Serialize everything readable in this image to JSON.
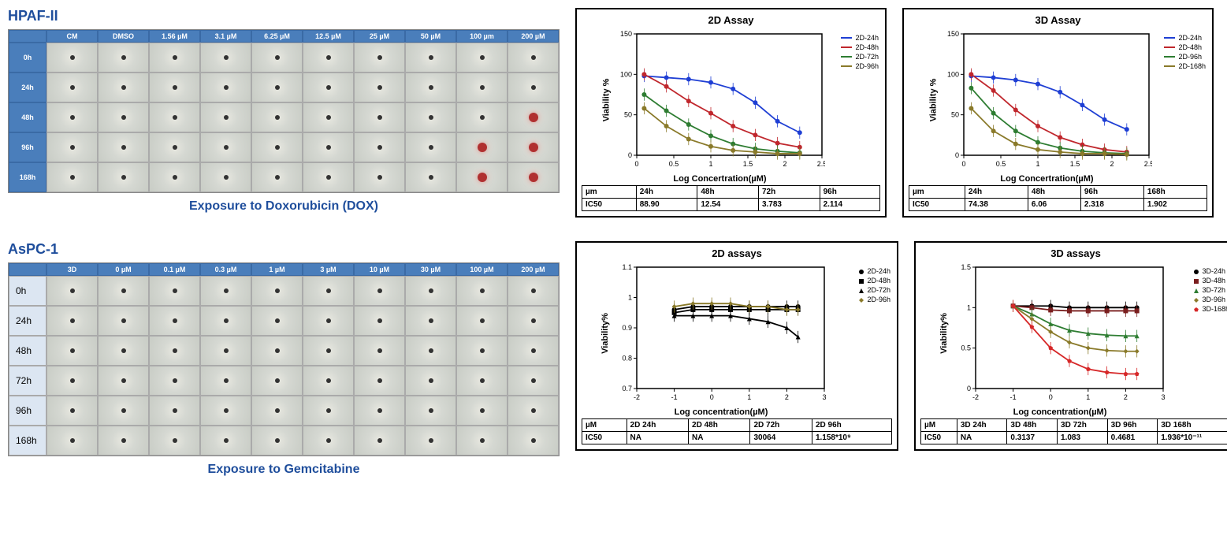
{
  "top": {
    "cell_line": "HPAF-II",
    "caption": "Exposure to Doxorubicin (DOX)",
    "label_color": "#1f4e9c",
    "grid": {
      "col_headers": [
        "CM",
        "DMSO",
        "1.56 µM",
        "3.1 µM",
        "6.25 µM",
        "12.5 µM",
        "25 µM",
        "50 µM",
        "100 µm",
        "200 µM"
      ],
      "row_headers": [
        "0h",
        "24h",
        "48h",
        "96h",
        "168h"
      ],
      "header_bg": "#4a7ebb",
      "red_cells": [
        [
          2,
          9
        ],
        [
          3,
          8
        ],
        [
          3,
          9
        ],
        [
          4,
          8
        ],
        [
          4,
          9
        ]
      ]
    },
    "chart2d": {
      "title": "2D Assay",
      "ylabel": "Viability %",
      "xlabel": "Log Concertration(µM)",
      "xlim": [
        0.0,
        2.5
      ],
      "xticks": [
        0.0,
        0.5,
        1.0,
        1.5,
        2.0,
        2.5
      ],
      "ylim": [
        0,
        150
      ],
      "yticks": [
        0,
        50,
        100,
        150
      ],
      "series": [
        {
          "name": "2D-24h",
          "color": "#1f3fd4",
          "data": [
            [
              0.1,
              98
            ],
            [
              0.4,
              96
            ],
            [
              0.7,
              94
            ],
            [
              1.0,
              90
            ],
            [
              1.3,
              82
            ],
            [
              1.6,
              65
            ],
            [
              1.9,
              42
            ],
            [
              2.2,
              28
            ]
          ]
        },
        {
          "name": "2D-48h",
          "color": "#c0272d",
          "data": [
            [
              0.1,
              100
            ],
            [
              0.4,
              85
            ],
            [
              0.7,
              67
            ],
            [
              1.0,
              52
            ],
            [
              1.3,
              36
            ],
            [
              1.6,
              25
            ],
            [
              1.9,
              15
            ],
            [
              2.2,
              10
            ]
          ]
        },
        {
          "name": "2D-72h",
          "color": "#2e7d32",
          "data": [
            [
              0.1,
              75
            ],
            [
              0.4,
              55
            ],
            [
              0.7,
              38
            ],
            [
              1.0,
              24
            ],
            [
              1.3,
              14
            ],
            [
              1.6,
              8
            ],
            [
              1.9,
              5
            ],
            [
              2.2,
              3
            ]
          ]
        },
        {
          "name": "2D-96h",
          "color": "#8a7a2a",
          "data": [
            [
              0.1,
              58
            ],
            [
              0.4,
              36
            ],
            [
              0.7,
              20
            ],
            [
              1.0,
              11
            ],
            [
              1.3,
              6
            ],
            [
              1.6,
              4
            ],
            [
              1.9,
              2
            ],
            [
              2.2,
              2
            ]
          ]
        }
      ],
      "ic50_headers": [
        "µm",
        "24h",
        "48h",
        "72h",
        "96h"
      ],
      "ic50_values": [
        "IC50",
        "88.90",
        "12.54",
        "3.783",
        "2.114"
      ]
    },
    "chart3d": {
      "title": "3D Assay",
      "ylabel": "Viability %",
      "xlabel": "Log Concertration(µM)",
      "xlim": [
        0.0,
        2.5
      ],
      "xticks": [
        0.0,
        0.5,
        1.0,
        1.5,
        2.0,
        2.5
      ],
      "ylim": [
        0,
        150
      ],
      "yticks": [
        0,
        50,
        100,
        150
      ],
      "series": [
        {
          "name": "2D-24h",
          "color": "#1f3fd4",
          "data": [
            [
              0.1,
              98
            ],
            [
              0.4,
              96
            ],
            [
              0.7,
              93
            ],
            [
              1.0,
              88
            ],
            [
              1.3,
              78
            ],
            [
              1.6,
              62
            ],
            [
              1.9,
              44
            ],
            [
              2.2,
              32
            ]
          ]
        },
        {
          "name": "2D-48h",
          "color": "#c0272d",
          "data": [
            [
              0.1,
              100
            ],
            [
              0.4,
              80
            ],
            [
              0.7,
              56
            ],
            [
              1.0,
              36
            ],
            [
              1.3,
              22
            ],
            [
              1.6,
              13
            ],
            [
              1.9,
              7
            ],
            [
              2.2,
              4
            ]
          ]
        },
        {
          "name": "2D-96h",
          "color": "#2e7d32",
          "data": [
            [
              0.1,
              83
            ],
            [
              0.4,
              52
            ],
            [
              0.7,
              30
            ],
            [
              1.0,
              16
            ],
            [
              1.3,
              9
            ],
            [
              1.6,
              5
            ],
            [
              1.9,
              3
            ],
            [
              2.2,
              2
            ]
          ]
        },
        {
          "name": "2D-168h",
          "color": "#8a7a2a",
          "data": [
            [
              0.1,
              58
            ],
            [
              0.4,
              30
            ],
            [
              0.7,
              14
            ],
            [
              1.0,
              7
            ],
            [
              1.3,
              4
            ],
            [
              1.6,
              2
            ],
            [
              1.9,
              2
            ],
            [
              2.2,
              1
            ]
          ]
        }
      ],
      "ic50_headers": [
        "µm",
        "24h",
        "48h",
        "96h",
        "168h"
      ],
      "ic50_values": [
        "IC50",
        "74.38",
        "6.06",
        "2.318",
        "1.902"
      ]
    }
  },
  "bottom": {
    "cell_line": "AsPC-1",
    "caption": "Exposure to Gemcitabine",
    "grid": {
      "col_headers": [
        "3D",
        "0 µM",
        "0.1 µM",
        "0.3 µM",
        "1 µM",
        "3 µM",
        "10 µM",
        "30 µM",
        "100 µM",
        "200 µM"
      ],
      "row_headers": [
        "0h",
        "24h",
        "48h",
        "72h",
        "96h",
        "168h"
      ],
      "light_row_labels": true,
      "header_bg": "#4a7ebb"
    },
    "chart2d": {
      "title": "2D assays",
      "ylabel": "Viability%",
      "xlabel": "Log concentration(µM)",
      "xlim": [
        -2,
        3
      ],
      "xticks": [
        -2,
        -1,
        0,
        1,
        2,
        3
      ],
      "ylim": [
        0.7,
        1.1
      ],
      "yticks": [
        0.7,
        0.8,
        0.9,
        1.0,
        1.1
      ],
      "markers": true,
      "series": [
        {
          "name": "2D-24h",
          "color": "#000000",
          "marker": "circle",
          "data": [
            [
              -1,
              0.96
            ],
            [
              -0.5,
              0.97
            ],
            [
              0,
              0.97
            ],
            [
              0.5,
              0.97
            ],
            [
              1,
              0.97
            ],
            [
              1.5,
              0.97
            ],
            [
              2,
              0.97
            ],
            [
              2.3,
              0.97
            ]
          ]
        },
        {
          "name": "2D-48h",
          "color": "#000000",
          "marker": "square",
          "data": [
            [
              -1,
              0.95
            ],
            [
              -0.5,
              0.96
            ],
            [
              0,
              0.96
            ],
            [
              0.5,
              0.96
            ],
            [
              1,
              0.96
            ],
            [
              1.5,
              0.96
            ],
            [
              2,
              0.96
            ],
            [
              2.3,
              0.96
            ]
          ]
        },
        {
          "name": "2D-72h",
          "color": "#000000",
          "marker": "triangle",
          "data": [
            [
              -1,
              0.94
            ],
            [
              -0.5,
              0.94
            ],
            [
              0,
              0.94
            ],
            [
              0.5,
              0.94
            ],
            [
              1,
              0.93
            ],
            [
              1.5,
              0.92
            ],
            [
              2,
              0.9
            ],
            [
              2.3,
              0.87
            ]
          ]
        },
        {
          "name": "2D-96h",
          "color": "#8a7a2a",
          "marker": "diamond",
          "data": [
            [
              -1,
              0.97
            ],
            [
              -0.5,
              0.98
            ],
            [
              0,
              0.98
            ],
            [
              0.5,
              0.98
            ],
            [
              1,
              0.97
            ],
            [
              1.5,
              0.97
            ],
            [
              2,
              0.96
            ],
            [
              2.3,
              0.96
            ]
          ]
        }
      ],
      "ic50_headers": [
        "µM",
        "2D 24h",
        "2D 48h",
        "2D 72h",
        "2D 96h"
      ],
      "ic50_values": [
        "IC50",
        "NA",
        "NA",
        "30064",
        "1.158*10⁹"
      ]
    },
    "chart3d": {
      "title": "3D assays",
      "ylabel": "Viability%",
      "xlabel": "Log concentration(µM)",
      "xlim": [
        -2,
        3
      ],
      "xticks": [
        -2,
        -1,
        0,
        1,
        2,
        3
      ],
      "ylim": [
        0.0,
        1.5
      ],
      "yticks": [
        0.0,
        0.5,
        1.0,
        1.5
      ],
      "markers": true,
      "series": [
        {
          "name": "3D-24h",
          "color": "#000000",
          "marker": "circle",
          "data": [
            [
              -1,
              1.02
            ],
            [
              -0.5,
              1.02
            ],
            [
              0,
              1.02
            ],
            [
              0.5,
              1.0
            ],
            [
              1,
              1.0
            ],
            [
              1.5,
              1.0
            ],
            [
              2,
              1.0
            ],
            [
              2.3,
              1.0
            ]
          ]
        },
        {
          "name": "3D-48h",
          "color": "#7a1e1e",
          "marker": "square",
          "data": [
            [
              -1,
              1.02
            ],
            [
              -0.5,
              1.0
            ],
            [
              0,
              0.97
            ],
            [
              0.5,
              0.96
            ],
            [
              1,
              0.96
            ],
            [
              1.5,
              0.96
            ],
            [
              2,
              0.96
            ],
            [
              2.3,
              0.96
            ]
          ]
        },
        {
          "name": "3D-72h",
          "color": "#2e7d32",
          "marker": "triangle",
          "data": [
            [
              -1,
              1.02
            ],
            [
              -0.5,
              0.92
            ],
            [
              0,
              0.8
            ],
            [
              0.5,
              0.72
            ],
            [
              1,
              0.68
            ],
            [
              1.5,
              0.66
            ],
            [
              2,
              0.65
            ],
            [
              2.3,
              0.65
            ]
          ]
        },
        {
          "name": "3D-96h",
          "color": "#8a7a2a",
          "marker": "diamond",
          "data": [
            [
              -1,
              1.02
            ],
            [
              -0.5,
              0.86
            ],
            [
              0,
              0.7
            ],
            [
              0.5,
              0.57
            ],
            [
              1,
              0.5
            ],
            [
              1.5,
              0.47
            ],
            [
              2,
              0.46
            ],
            [
              2.3,
              0.46
            ]
          ]
        },
        {
          "name": "3D-168h",
          "color": "#d62728",
          "marker": "pentagon",
          "data": [
            [
              -1,
              1.02
            ],
            [
              -0.5,
              0.76
            ],
            [
              0,
              0.5
            ],
            [
              0.5,
              0.34
            ],
            [
              1,
              0.24
            ],
            [
              1.5,
              0.2
            ],
            [
              2,
              0.18
            ],
            [
              2.3,
              0.18
            ]
          ]
        }
      ],
      "ic50_headers": [
        "µM",
        "3D 24h",
        "3D 48h",
        "3D 72h",
        "3D 96h",
        "3D 168h"
      ],
      "ic50_values": [
        "IC50",
        "NA",
        "0.3137",
        "1.083",
        "0.4681",
        "1.936*10⁻¹¹"
      ]
    }
  }
}
